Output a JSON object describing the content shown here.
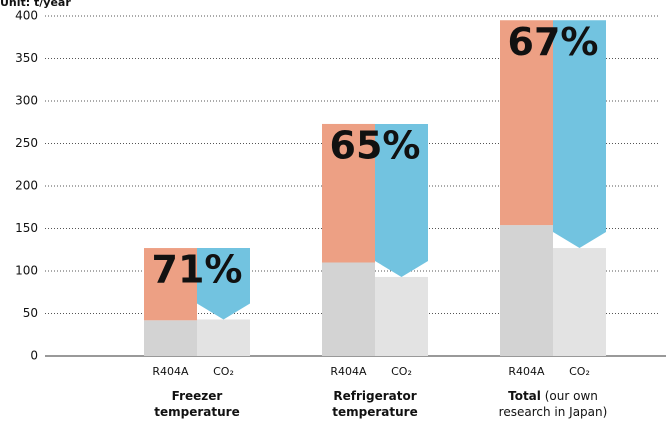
{
  "chart_data": {
    "type": "bar",
    "unit_label": "Unit: t/year",
    "categories": [
      {
        "bold": "Freezer temperature",
        "rest": null
      },
      {
        "bold": "Refrigerator temperature",
        "rest": null
      },
      {
        "bold": "Total",
        "rest": "(our own research in Japan)"
      }
    ],
    "sub_categories": [
      "R404A",
      "CO₂"
    ],
    "series": [
      {
        "color": "#d3d3d3",
        "values": [
          42,
          110,
          154
        ]
      },
      {
        "color": "#eda084",
        "values": [
          85,
          163,
          241
        ]
      },
      {
        "color": "#e3e3e3",
        "values": [
          43,
          93,
          127
        ]
      },
      {
        "color": "#72c3e0",
        "values": [
          84,
          180,
          268
        ]
      }
    ],
    "reduction_labels": [
      "71%",
      "65%",
      "67%"
    ],
    "ylim": [
      0,
      400
    ],
    "yticks": [
      0,
      50,
      100,
      150,
      200,
      250,
      300,
      350,
      400
    ],
    "grid": true
  }
}
